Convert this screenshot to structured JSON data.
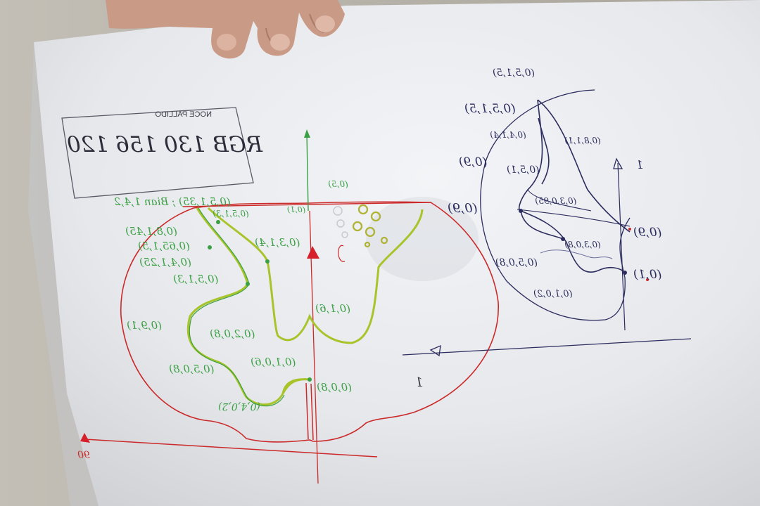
{
  "photo": {
    "colors": {
      "wall": "#b4afa5",
      "paper": "#e9ebef",
      "paper_shade": "#d2d4d8",
      "skin": "#c99a86",
      "red_pen": "#cc2a2a",
      "green_pen": "#3aa043",
      "yellow_green": "#a8c42a",
      "blue_pen": "#2c2c5e"
    }
  },
  "sketch": {
    "header_small": "NOCE PALLIDO",
    "header_rgb": "RGB 130 156 120",
    "top_note": "(0,5,1,35) ; Bian 1,4,2",
    "left_coords": [
      "(0,8,1,45)",
      "(0,65,1,5)",
      "(0,4,1,25)",
      "(0,5,1,3)",
      "(0,9,1)",
      "(0,5,0,8)"
    ],
    "inner_coords": [
      "(0,5,1,3)",
      "(0,3,1,4)",
      "(0,2,0,8)",
      "(0,1,0,6)",
      "(0,1,6)",
      "(0,4,0,2)"
    ],
    "right_coords": [
      "(0,5)",
      "(0,1)",
      "(0,0,8)"
    ],
    "right_label": "1",
    "axis_label": "90",
    "detail_coords": [
      "(0,5,1,5)",
      "(0,5,1,5)",
      "(0,4,1,4)",
      "(0,8,1,1)",
      "(0,5,1)",
      "(0,9)",
      "(0,3,0,95)",
      "(0,3,0,8)",
      "(0,5,0,8)",
      "(0,9)",
      "(0,1,0,2)",
      "(0,1)"
    ],
    "detail_label": "1"
  }
}
